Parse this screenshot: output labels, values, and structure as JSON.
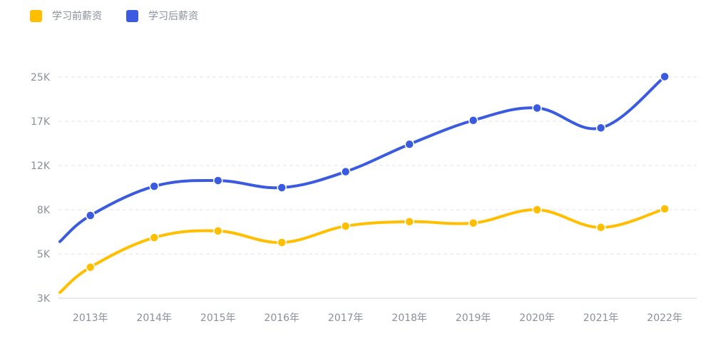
{
  "chart_data": {
    "type": "line",
    "smooth": true,
    "categories": [
      "2013年",
      "2014年",
      "2015年",
      "2016年",
      "2017年",
      "2018年",
      "2019年",
      "2020年",
      "2021年",
      "2022年"
    ],
    "y_ticks": [
      "3K",
      "5K",
      "8K",
      "12K",
      "17K",
      "25K"
    ],
    "ylim": [
      0,
      5
    ],
    "grid": "horizontal dashed",
    "legend_position": "top-left",
    "series": [
      {
        "name": "学习前薪资",
        "color": "#FFBF00",
        "values": [
          0.7,
          1.37,
          1.52,
          1.26,
          1.63,
          1.73,
          1.7,
          2.0,
          1.6,
          2.02
        ],
        "start_value": 0.13
      },
      {
        "name": "学习后薪资",
        "color": "#3A5BE0",
        "values": [
          1.87,
          2.53,
          2.66,
          2.5,
          2.86,
          3.48,
          4.02,
          4.3,
          3.85,
          5.01
        ],
        "start_value": 1.28
      }
    ]
  }
}
